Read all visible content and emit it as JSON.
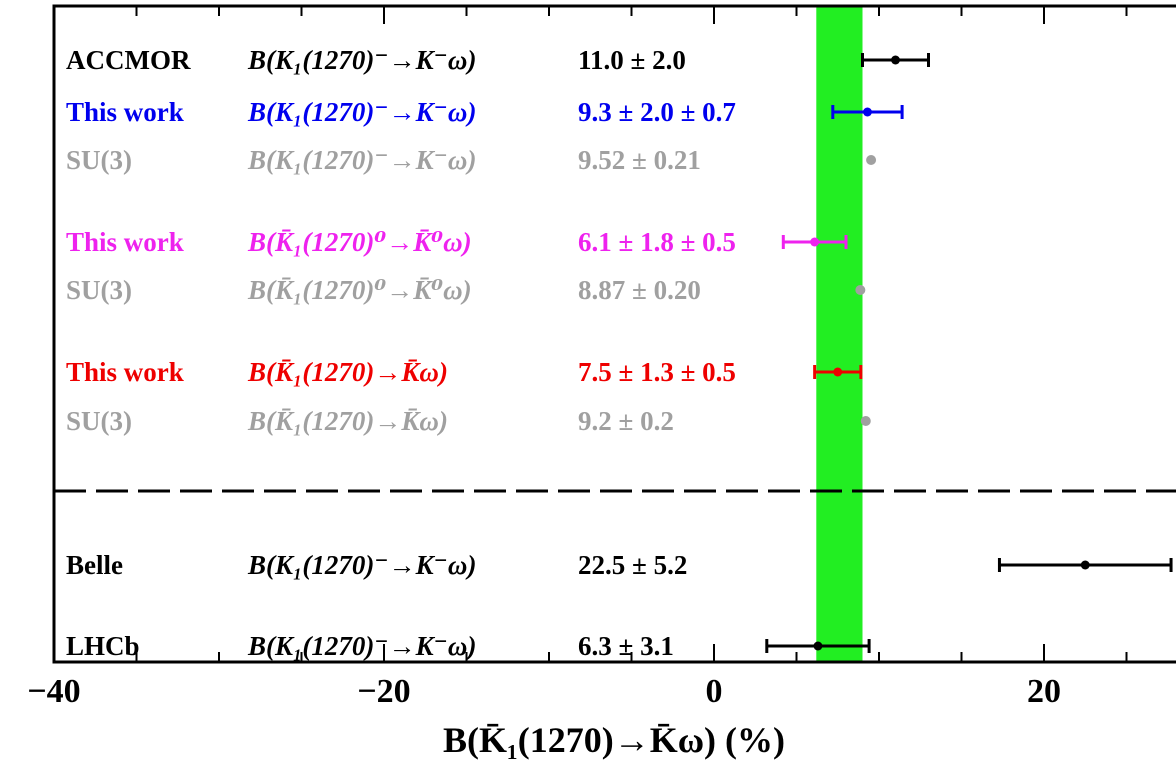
{
  "chart_data": {
    "type": "scatter",
    "xlabel": "B(K̄₁(1270)→K̄ω) (%)",
    "xlim": [
      -40,
      28
    ],
    "x_ticks": [
      {
        "value": -40,
        "label": "−40"
      },
      {
        "value": -20,
        "label": "−20"
      },
      {
        "value": 0,
        "label": "0"
      },
      {
        "value": 20,
        "label": "20"
      }
    ],
    "band": {
      "low": 6.2,
      "high": 9.0,
      "color": "#22ee22"
    },
    "divider": "dashed line between theory/this-work block and experimental block",
    "rows": [
      {
        "group": "ACCMOR",
        "process": "B(K₁(1270)⁻→K⁻ω)",
        "value_text": "11.0 ± 2.0",
        "value": 11.0,
        "err_low": 2.0,
        "err_high": 2.0,
        "color": "#000000",
        "marker": "bar"
      },
      {
        "group": "This work",
        "process": "B(K₁(1270)⁻→K⁻ω)",
        "value_text": "9.3 ± 2.0 ± 0.7",
        "value": 9.3,
        "err_low": 2.1,
        "err_high": 2.1,
        "color": "#0000ee",
        "marker": "bar"
      },
      {
        "group": "SU(3)",
        "process": "B(K₁(1270)⁻→K⁻ω)",
        "value_text": "9.52 ± 0.21",
        "value": 9.52,
        "err_low": 0.21,
        "err_high": 0.21,
        "color": "#a0a0a0",
        "marker": "dot"
      },
      {
        "group": "This work",
        "process": "B(K̄₁(1270)⁰→K̄⁰ω)",
        "value_text": "6.1 ± 1.8 ± 0.5",
        "value": 6.1,
        "err_low": 1.9,
        "err_high": 1.9,
        "color": "#ee22ee",
        "marker": "bar"
      },
      {
        "group": "SU(3)",
        "process": "B(K̄₁(1270)⁰→K̄⁰ω)",
        "value_text": "8.87 ± 0.20",
        "value": 8.87,
        "err_low": 0.2,
        "err_high": 0.2,
        "color": "#a0a0a0",
        "marker": "dot"
      },
      {
        "group": "This work",
        "process": "B(K̄₁(1270)→K̄ω)",
        "value_text": "7.5 ± 1.3 ± 0.5",
        "value": 7.5,
        "err_low": 1.4,
        "err_high": 1.4,
        "color": "#ee0000",
        "marker": "bar"
      },
      {
        "group": "SU(3)",
        "process": "B(K̄₁(1270)→K̄ω)",
        "value_text": "9.2 ± 0.2",
        "value": 9.2,
        "err_low": 0.2,
        "err_high": 0.2,
        "color": "#a0a0a0",
        "marker": "dot"
      },
      {
        "group": "Belle",
        "process": "B(K₁(1270)⁻→K⁻ω)",
        "value_text": "22.5 ± 5.2",
        "value": 22.5,
        "err_low": 5.2,
        "err_high": 5.2,
        "color": "#000000",
        "marker": "bar"
      },
      {
        "group": "LHCb",
        "process": "B(K₁(1270)⁻→K⁻ω)",
        "value_text": "6.3 ± 3.1",
        "value": 6.3,
        "err_low": 3.1,
        "err_high": 3.1,
        "color": "#000000",
        "marker": "bar"
      }
    ]
  }
}
